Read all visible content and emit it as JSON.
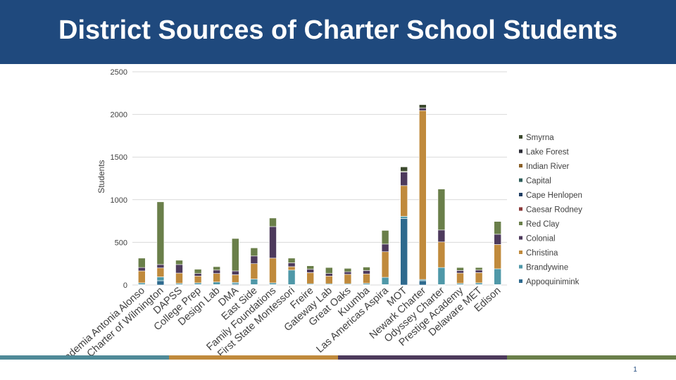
{
  "title": "District Sources of Charter School Students",
  "page_number": "1",
  "footer_colors": [
    "#4f8a98",
    "#c08a3c",
    "#4d3a5c",
    "#6a7f4a"
  ],
  "chart_data": {
    "type": "bar",
    "stacked": true,
    "ylabel": "Students",
    "ylim": [
      0,
      2500
    ],
    "yticks": [
      0,
      500,
      1000,
      1500,
      2000,
      2500
    ],
    "grid": true,
    "legend_position": "right",
    "categories": [
      "Academia Antonia Alonso",
      "Charter of Wilmington",
      "DAPSS",
      "College Prep",
      "Design Lab",
      "DMA",
      "East Side",
      "Family Foundations",
      "First State Montessori",
      "Freire",
      "Gateway Lab",
      "Great Oaks",
      "Kuumba",
      "Las Americas Aspira",
      "MOT",
      "Newark Charter",
      "Odyssey Charter",
      "Prestige Academy",
      "Delaware MET",
      "Edison"
    ],
    "series": [
      {
        "name": "Appoquinimink",
        "color": "#2e6a8e",
        "values": [
          5,
          50,
          5,
          5,
          5,
          10,
          5,
          5,
          5,
          5,
          5,
          5,
          5,
          5,
          780,
          50,
          5,
          5,
          5,
          5
        ]
      },
      {
        "name": "Brandywine",
        "color": "#4f98a8",
        "values": [
          20,
          45,
          15,
          20,
          30,
          20,
          65,
          20,
          170,
          10,
          10,
          10,
          15,
          85,
          25,
          15,
          200,
          15,
          20,
          185
        ]
      },
      {
        "name": "Christina",
        "color": "#c08a3c",
        "values": [
          140,
          105,
          120,
          80,
          100,
          90,
          180,
          290,
          40,
          130,
          90,
          110,
          110,
          300,
          360,
          1980,
          300,
          120,
          120,
          285
        ]
      },
      {
        "name": "Colonial",
        "color": "#4d3a5c",
        "values": [
          40,
          40,
          100,
          30,
          40,
          45,
          90,
          370,
          45,
          40,
          30,
          30,
          40,
          90,
          160,
          30,
          140,
          30,
          30,
          120
        ]
      },
      {
        "name": "Red Clay",
        "color": "#6a7f4a",
        "values": [
          110,
          735,
          50,
          50,
          40,
          380,
          95,
          100,
          55,
          40,
          70,
          40,
          40,
          160,
          10,
          0,
          480,
          35,
          30,
          150
        ]
      },
      {
        "name": "Caesar Rodney",
        "color": "#8b3a3a",
        "values": [
          0,
          0,
          0,
          0,
          0,
          0,
          0,
          0,
          0,
          0,
          0,
          0,
          0,
          0,
          0,
          0,
          0,
          0,
          0,
          0
        ]
      },
      {
        "name": "Cape Henlopen",
        "color": "#1f3e64",
        "values": [
          0,
          0,
          0,
          0,
          0,
          0,
          0,
          0,
          0,
          0,
          0,
          0,
          0,
          0,
          0,
          0,
          0,
          0,
          0,
          0
        ]
      },
      {
        "name": "Capital",
        "color": "#2e5d5a",
        "values": [
          0,
          0,
          0,
          0,
          0,
          0,
          0,
          0,
          0,
          0,
          0,
          0,
          0,
          0,
          0,
          0,
          0,
          0,
          0,
          0
        ]
      },
      {
        "name": "Indian River",
        "color": "#8a6028",
        "values": [
          0,
          0,
          0,
          0,
          0,
          0,
          0,
          0,
          0,
          0,
          0,
          0,
          0,
          0,
          0,
          0,
          0,
          0,
          0,
          0
        ]
      },
      {
        "name": "Lake Forest",
        "color": "#2b2b35",
        "values": [
          0,
          0,
          0,
          0,
          0,
          0,
          0,
          0,
          0,
          0,
          0,
          0,
          0,
          0,
          0,
          0,
          0,
          0,
          0,
          0
        ]
      },
      {
        "name": "Smyrna",
        "color": "#3c4a2e",
        "values": [
          0,
          0,
          0,
          0,
          0,
          0,
          0,
          0,
          0,
          0,
          0,
          0,
          0,
          0,
          50,
          40,
          0,
          0,
          0,
          0
        ]
      }
    ]
  }
}
